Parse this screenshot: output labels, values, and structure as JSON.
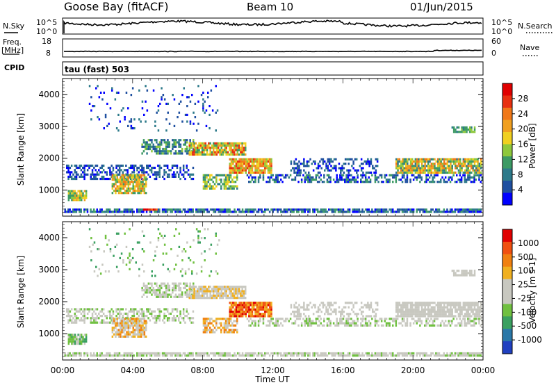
{
  "header": {
    "station": "Goose Bay (fitACF)",
    "beam": "Beam 10",
    "date": "01/Jun/2015"
  },
  "panels": {
    "nsky": {
      "label": "N.Sky",
      "right_label": "N.Search",
      "tick_top": "10^5",
      "tick_bottom": "10^0",
      "right_tick_top": "10^5",
      "right_tick_bottom": "10^0"
    },
    "freq": {
      "label_line1": "Freq.",
      "label_line2": "[MHz]",
      "right_label": "Nave",
      "left_ticks": [
        "18",
        "8"
      ],
      "right_ticks": [
        "60",
        "0"
      ]
    },
    "cpid": {
      "label": "CPID",
      "mode": "tau (fast) 503"
    }
  },
  "chart_data": [
    {
      "type": "heatmap",
      "panel": "power",
      "ylabel": "Slant Range [km]",
      "yticks": [
        "4000",
        "3000",
        "2000",
        "1000"
      ],
      "colorbar_label": "Power [dB]",
      "colorbar_ticks": [
        "28",
        "24",
        "20",
        "16",
        "12",
        "8",
        "4"
      ],
      "colors": [
        "#0000ff",
        "#1f4fa0",
        "#2d7a8a",
        "#3c9a64",
        "#8ec83c",
        "#f0d020",
        "#f0a020",
        "#f07818",
        "#e83010",
        "#e00000"
      ]
    },
    {
      "type": "heatmap",
      "panel": "velocity",
      "ylabel": "Slant Range [km]",
      "yticks": [
        "4000",
        "3000",
        "2000",
        "1000"
      ],
      "colorbar_label": "Velocity [m s-1]",
      "colorbar_ticks": [
        "1000",
        "500",
        "100",
        "25",
        "-25",
        "-100",
        "-500",
        "-1000"
      ],
      "colors": [
        "#2040c0",
        "#2a78a8",
        "#3aa060",
        "#70c040",
        "#c8c8c0",
        "#c8c8c0",
        "#f0b020",
        "#f08010",
        "#f05010",
        "#e00000"
      ]
    }
  ],
  "time_axis": {
    "ticks": [
      "00:00",
      "04:00",
      "08:00",
      "12:00",
      "16:00",
      "20:00",
      "00:00"
    ],
    "label": "Time UT"
  }
}
